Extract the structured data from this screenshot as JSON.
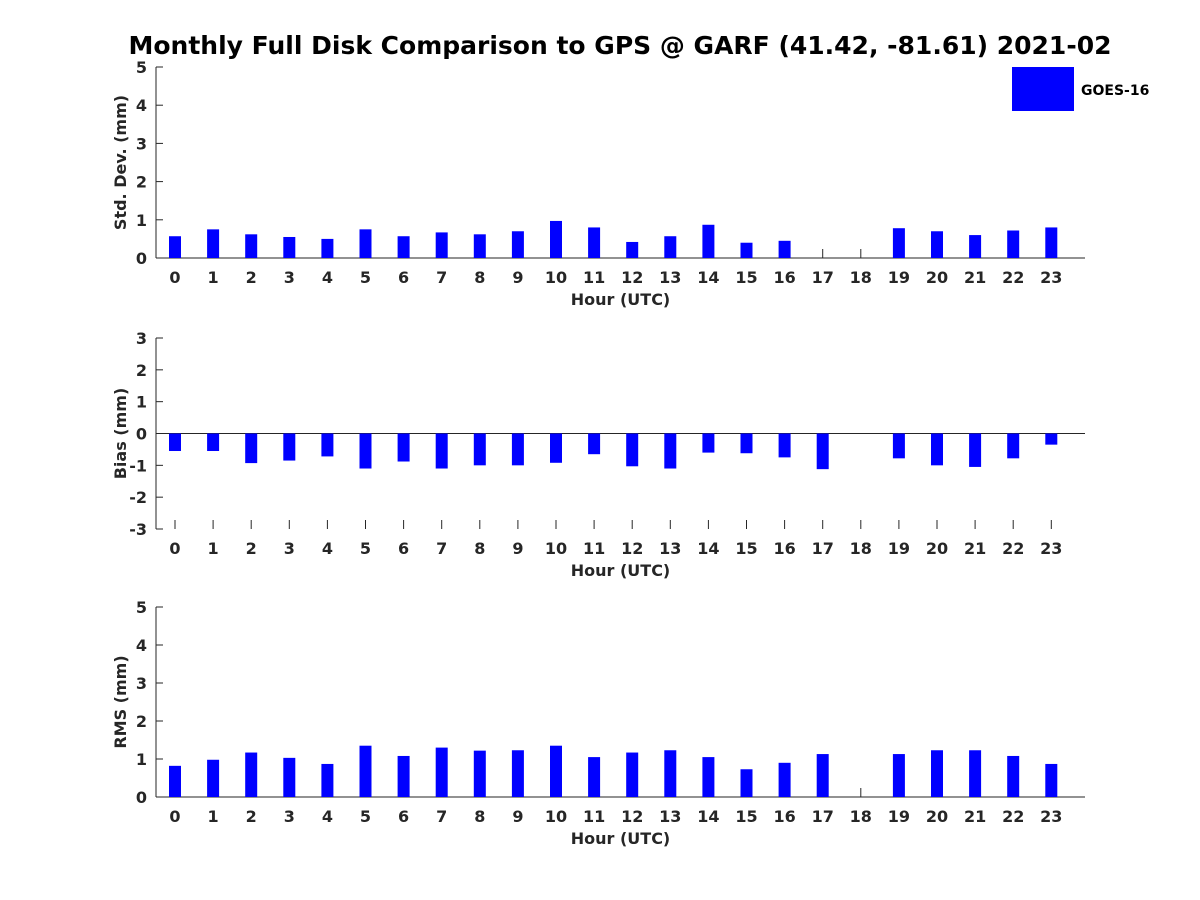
{
  "figure": {
    "title": "Monthly Full Disk Comparison to GPS @ GARF (41.42, -81.61) 2021-02",
    "legend": {
      "entries": [
        "GOES-16"
      ],
      "placement": "top-right"
    },
    "series_color": "#0000ff"
  },
  "chart_data": [
    {
      "type": "bar",
      "title": "Monthly Full Disk Comparison to GPS @ GARF (41.42, -81.61) 2021-02",
      "xlabel": "Hour (UTC)",
      "ylabel": "Std. Dev. (mm)",
      "ylim": [
        0,
        5
      ],
      "yticks": [
        "0",
        "1",
        "2",
        "3",
        "4",
        "5"
      ],
      "categories": [
        "0",
        "1",
        "2",
        "3",
        "4",
        "5",
        "6",
        "7",
        "8",
        "9",
        "10",
        "11",
        "12",
        "13",
        "14",
        "15",
        "16",
        "17",
        "18",
        "19",
        "20",
        "21",
        "22",
        "23"
      ],
      "series": [
        {
          "name": "GOES-16",
          "color": "#0000ff",
          "values": [
            0.57,
            0.75,
            0.62,
            0.55,
            0.5,
            0.75,
            0.57,
            0.67,
            0.62,
            0.7,
            0.97,
            0.8,
            0.42,
            0.57,
            0.87,
            0.4,
            0.45,
            null,
            null,
            0.78,
            0.7,
            0.6,
            0.72,
            0.8
          ]
        }
      ],
      "grid": false,
      "legend": "top-right"
    },
    {
      "type": "bar",
      "xlabel": "Hour (UTC)",
      "ylabel": "Bias (mm)",
      "ylim": [
        -3,
        3
      ],
      "yticks": [
        "-3",
        "-2",
        "-1",
        "0",
        "1",
        "2",
        "3"
      ],
      "categories": [
        "0",
        "1",
        "2",
        "3",
        "4",
        "5",
        "6",
        "7",
        "8",
        "9",
        "10",
        "11",
        "12",
        "13",
        "14",
        "15",
        "16",
        "17",
        "18",
        "19",
        "20",
        "21",
        "22",
        "23"
      ],
      "series": [
        {
          "name": "GOES-16",
          "color": "#0000ff",
          "values": [
            -0.55,
            -0.55,
            -0.93,
            -0.85,
            -0.72,
            -1.1,
            -0.88,
            -1.1,
            -1.0,
            -1.0,
            -0.92,
            -0.65,
            -1.03,
            -1.1,
            -0.6,
            -0.62,
            -0.75,
            -1.12,
            null,
            -0.78,
            -1.0,
            -1.05,
            -0.78,
            -0.35
          ]
        }
      ],
      "grid": false
    },
    {
      "type": "bar",
      "xlabel": "Hour (UTC)",
      "ylabel": "RMS (mm)",
      "ylim": [
        0,
        5
      ],
      "yticks": [
        "0",
        "1",
        "2",
        "3",
        "4",
        "5"
      ],
      "categories": [
        "0",
        "1",
        "2",
        "3",
        "4",
        "5",
        "6",
        "7",
        "8",
        "9",
        "10",
        "11",
        "12",
        "13",
        "14",
        "15",
        "16",
        "17",
        "18",
        "19",
        "20",
        "21",
        "22",
        "23"
      ],
      "series": [
        {
          "name": "GOES-16",
          "color": "#0000ff",
          "values": [
            0.82,
            0.98,
            1.17,
            1.03,
            0.87,
            1.35,
            1.08,
            1.3,
            1.22,
            1.23,
            1.35,
            1.05,
            1.17,
            1.23,
            1.05,
            0.73,
            0.9,
            1.13,
            null,
            1.13,
            1.23,
            1.23,
            1.08,
            0.87
          ]
        }
      ],
      "grid": false
    }
  ]
}
